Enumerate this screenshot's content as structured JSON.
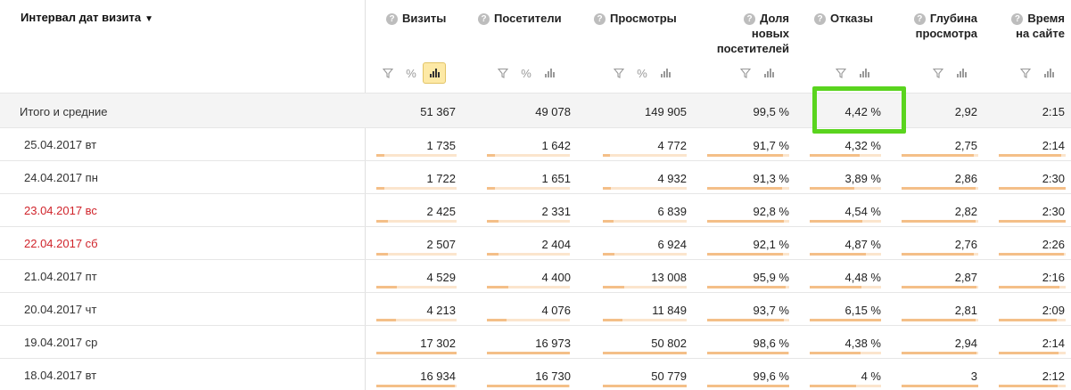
{
  "header": {
    "dimension_label": "Интервал дат визита",
    "dimension_arrow": "▼",
    "help_glyph": "?",
    "percent_glyph": "%",
    "metrics": [
      {
        "key": "visits",
        "lines": [
          "Визиты"
        ],
        "has_percent": true,
        "chart_active": true
      },
      {
        "key": "visitors",
        "lines": [
          "Посетители"
        ],
        "has_percent": true,
        "chart_active": false
      },
      {
        "key": "pageviews",
        "lines": [
          "Просмотры"
        ],
        "has_percent": true,
        "chart_active": false
      },
      {
        "key": "new_share",
        "lines": [
          "Доля",
          "новых",
          "посетителей"
        ],
        "has_percent": false,
        "chart_active": false
      },
      {
        "key": "bounces",
        "lines": [
          "Отказы"
        ],
        "has_percent": false,
        "chart_active": false
      },
      {
        "key": "depth",
        "lines": [
          "Глубина",
          "просмотра"
        ],
        "has_percent": false,
        "chart_active": false
      },
      {
        "key": "time",
        "lines": [
          "Время",
          "на сайте"
        ],
        "has_percent": false,
        "chart_active": false
      }
    ]
  },
  "totals": {
    "label": "Итого и средние",
    "values": [
      "51 367",
      "49 078",
      "149 905",
      "99,5 %",
      "4,42 %",
      "2,92",
      "2:15"
    ]
  },
  "rows": [
    {
      "date": "25.04.2017 вт",
      "weekend": false,
      "values": [
        "1 735",
        "1 642",
        "4 772",
        "91,7 %",
        "4,32 %",
        "2,75",
        "2:14"
      ],
      "fill": [
        0.1,
        0.1,
        0.09,
        0.92,
        0.7,
        0.94,
        0.93
      ]
    },
    {
      "date": "24.04.2017 пн",
      "weekend": false,
      "values": [
        "1 722",
        "1 651",
        "4 932",
        "91,3 %",
        "3,89 %",
        "2,86",
        "2:30"
      ],
      "fill": [
        0.1,
        0.1,
        0.1,
        0.91,
        0.63,
        0.97,
        1.0
      ]
    },
    {
      "date": "23.04.2017 вс",
      "weekend": true,
      "values": [
        "2 425",
        "2 331",
        "6 839",
        "92,8 %",
        "4,54 %",
        "2,82",
        "2:30"
      ],
      "fill": [
        0.14,
        0.14,
        0.13,
        0.93,
        0.74,
        0.96,
        1.0
      ]
    },
    {
      "date": "22.04.2017 сб",
      "weekend": true,
      "values": [
        "2 507",
        "2 404",
        "6 924",
        "92,1 %",
        "4,87 %",
        "2,76",
        "2:26"
      ],
      "fill": [
        0.14,
        0.14,
        0.14,
        0.92,
        0.79,
        0.94,
        0.97
      ]
    },
    {
      "date": "21.04.2017 пт",
      "weekend": false,
      "values": [
        "4 529",
        "4 400",
        "13 008",
        "95,9 %",
        "4,48 %",
        "2,87",
        "2:16"
      ],
      "fill": [
        0.26,
        0.26,
        0.26,
        0.96,
        0.73,
        0.98,
        0.91
      ]
    },
    {
      "date": "20.04.2017 чт",
      "weekend": false,
      "values": [
        "4 213",
        "4 076",
        "11 849",
        "93,7 %",
        "6,15 %",
        "2,81",
        "2:09"
      ],
      "fill": [
        0.24,
        0.24,
        0.23,
        0.94,
        1.0,
        0.96,
        0.86
      ]
    },
    {
      "date": "19.04.2017 ср",
      "weekend": false,
      "values": [
        "17 302",
        "16 973",
        "50 802",
        "98,6 %",
        "4,38 %",
        "2,94",
        "2:14"
      ],
      "fill": [
        1.0,
        1.0,
        1.0,
        0.99,
        0.71,
        0.98,
        0.89
      ]
    },
    {
      "date": "18.04.2017 вт",
      "weekend": false,
      "values": [
        "16 934",
        "16 730",
        "50 779",
        "99,6 %",
        "4 %",
        "3",
        "2:12"
      ],
      "fill": [
        0.98,
        0.99,
        1.0,
        1.0,
        0.65,
        1.0,
        0.88
      ]
    }
  ],
  "colors": {
    "weekend_text": "#d0242b",
    "bar_fill": "#f4bf88",
    "bar_track": "#fbe5cd",
    "highlight_border": "#5ad41e",
    "active_chart_button": "#fde9a6"
  }
}
